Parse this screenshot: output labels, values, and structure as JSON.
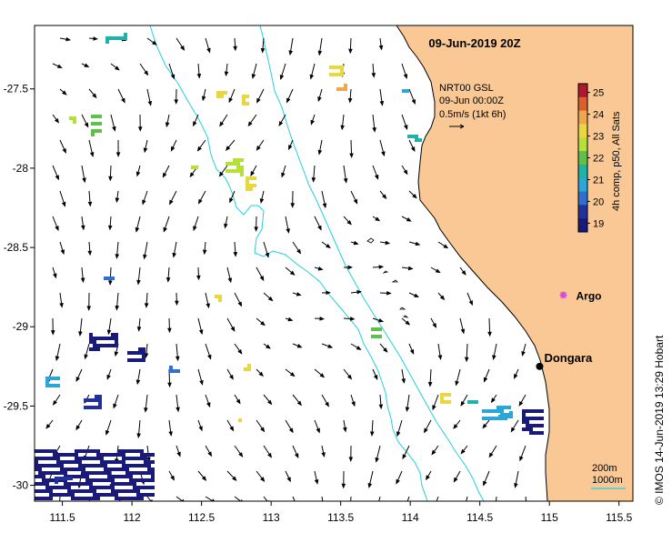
{
  "map": {
    "title": "09-Jun-2019 20Z",
    "legend_lines": [
      "NRT00 GSL",
      "09-Jun 00:00Z",
      "0.5m/s (1kt 6h)"
    ],
    "credit": "© IMOS 14-Jun-2019 13:29 Hobart",
    "extent": {
      "lon": [
        111.3,
        115.6
      ],
      "lat": [
        -30.1,
        -27.1
      ]
    },
    "x_ticks": [
      "111.5",
      "112",
      "112.5",
      "113",
      "113.5",
      "114",
      "114.5",
      "115",
      "115.5"
    ],
    "y_ticks": [
      "-27.5",
      "-28",
      "-28.5",
      "-29",
      "-29.5",
      "-30"
    ],
    "places": [
      {
        "name": "Argo",
        "lon": 115.1,
        "lat": -28.8,
        "marker": "star",
        "color": "#d94ad9"
      },
      {
        "name": "Dongara",
        "lon": 114.93,
        "lat": -29.25,
        "marker": "dot",
        "color": "#000000"
      }
    ],
    "bathymetry": {
      "labels": [
        "200m",
        "1000m"
      ]
    },
    "colorbar": {
      "title": "4h comp, p50, All Sats",
      "ticks": [
        "25",
        "24",
        "23",
        "22",
        "21",
        "20",
        "19"
      ],
      "range": [
        18.6,
        25.4
      ],
      "colors": [
        "#b2182b",
        "#d8612b",
        "#f2a54f",
        "#e8d740",
        "#b6df3a",
        "#5fc04c",
        "#1fb2a8",
        "#2aa6d8",
        "#2f6fd0",
        "#22309c",
        "#1a1a7a"
      ]
    },
    "colors": {
      "land": "#f9c894",
      "isobath": "#22d0e0",
      "coast": "#000000"
    }
  }
}
